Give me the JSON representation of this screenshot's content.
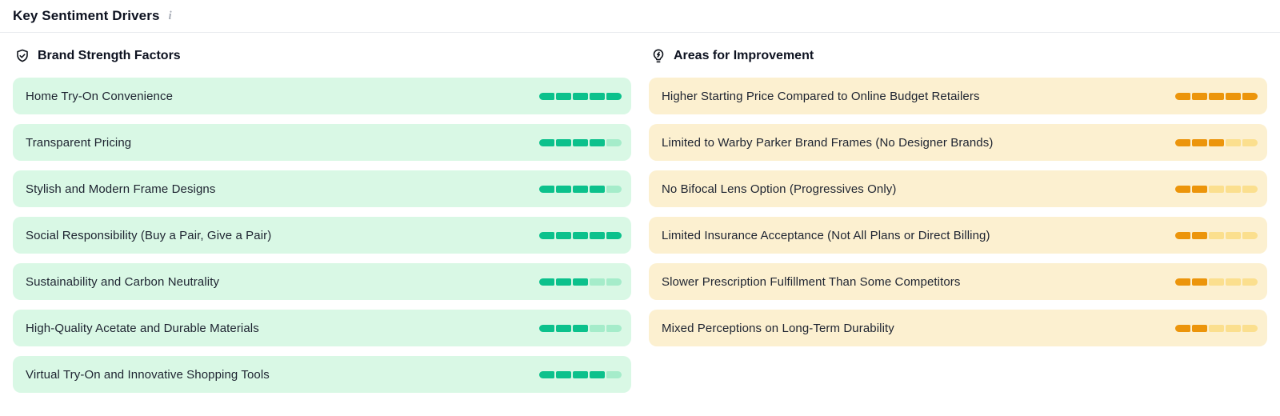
{
  "header": {
    "title": "Key Sentiment Drivers",
    "info_icon": "i"
  },
  "columns": [
    {
      "id": "brand-strength-factors",
      "title": "Brand Strength Factors",
      "icon": "shield-check-icon",
      "theme": {
        "row_bg": "#d9f8e5",
        "filled": "#0cc18c",
        "empty": "#a5ecca"
      },
      "max_segments": 5,
      "items": [
        {
          "label": "Home Try-On Convenience",
          "score": 5
        },
        {
          "label": "Transparent Pricing",
          "score": 4
        },
        {
          "label": "Stylish and Modern Frame Designs",
          "score": 4
        },
        {
          "label": "Social Responsibility (Buy a Pair, Give a Pair)",
          "score": 5
        },
        {
          "label": "Sustainability and Carbon Neutrality",
          "score": 3
        },
        {
          "label": "High-Quality Acetate and Durable Materials",
          "score": 3
        },
        {
          "label": "Virtual Try-On and Innovative Shopping Tools",
          "score": 4
        }
      ]
    },
    {
      "id": "areas-for-improvement",
      "title": "Areas for Improvement",
      "icon": "lightbulb-bolt-icon",
      "theme": {
        "row_bg": "#fcf0d0",
        "filled": "#ec950b",
        "empty": "#fbdf8e"
      },
      "max_segments": 5,
      "items": [
        {
          "label": "Higher Starting Price Compared to Online Budget Retailers",
          "score": 5
        },
        {
          "label": "Limited to Warby Parker Brand Frames (No Designer Brands)",
          "score": 3
        },
        {
          "label": "No Bifocal Lens Option (Progressives Only)",
          "score": 2
        },
        {
          "label": "Limited Insurance Acceptance (Not All Plans or Direct Billing)",
          "score": 2
        },
        {
          "label": "Slower Prescription Fulfillment Than Some Competitors",
          "score": 2
        },
        {
          "label": "Mixed Perceptions on Long-Term Durability",
          "score": 2
        }
      ]
    }
  ]
}
